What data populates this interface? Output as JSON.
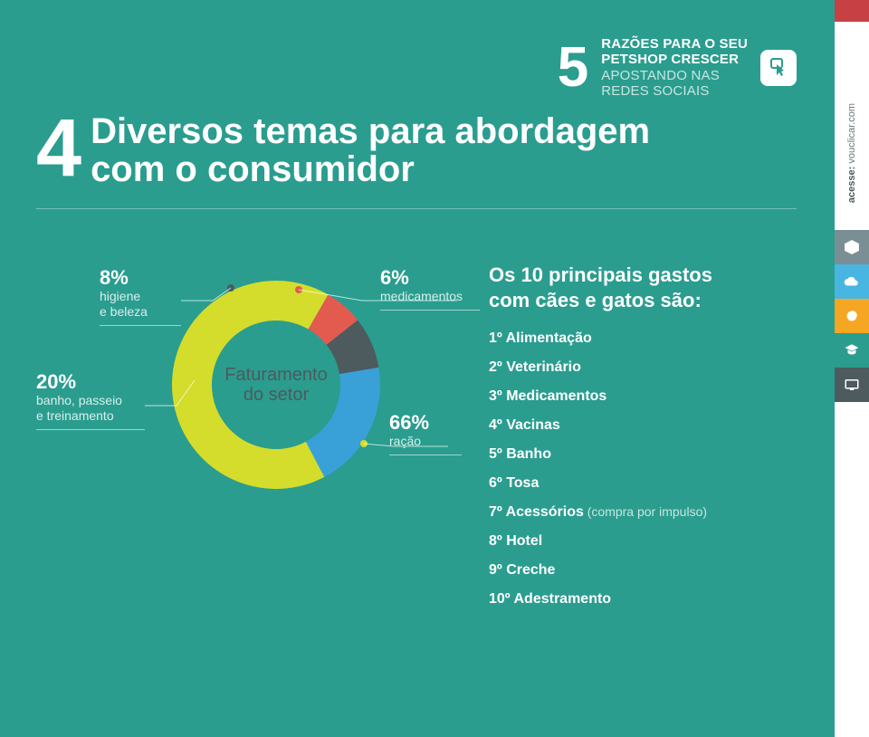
{
  "colors": {
    "page_bg": "#2a9d8f",
    "text_primary": "#ffffff",
    "text_muted": "#d8efeb",
    "text_dark": "#4d5a5e",
    "rule": "rgba(255,255,255,0.35)"
  },
  "header": {
    "numeral": "5",
    "line1": "RAZÕES PARA O SEU",
    "line2": "PETSHOP CRESCER",
    "line3": "APOSTANDO NAS",
    "line4": "REDES SOCIAIS"
  },
  "title": {
    "numeral": "4",
    "line1": "Diversos temas para abordagem",
    "line2": "com o consumidor"
  },
  "donut": {
    "type": "pie",
    "center_label_l1": "Faturamento",
    "center_label_l2": "do setor",
    "ring_thickness": 44,
    "outer_radius": 115,
    "segments": [
      {
        "id": "racao",
        "label_pct": "66%",
        "label_desc": "ração",
        "value": 66,
        "color": "#d4dd2b"
      },
      {
        "id": "banho",
        "label_pct": "20%",
        "label_desc_l1": "banho, passeio",
        "label_desc_l2": "e treinamento",
        "value": 20,
        "color": "#3aa0d8"
      },
      {
        "id": "higiene",
        "label_pct": "8%",
        "label_desc_l1": "higiene",
        "label_desc_l2": "e beleza",
        "value": 8,
        "color": "#4d5a5e"
      },
      {
        "id": "medicamentos",
        "label_pct": "6%",
        "label_desc": "medicamentos",
        "value": 6,
        "color": "#e35a4f"
      }
    ],
    "background_color": "#2a9d8f",
    "label_fontsize": 22,
    "desc_fontsize": 14
  },
  "ranking": {
    "title_l1": "Os 10 principais gastos",
    "title_l2": "com cães e gatos são:",
    "items": [
      {
        "pos": "1º",
        "label": "Alimentação"
      },
      {
        "pos": "2º",
        "label": "Veterinário"
      },
      {
        "pos": "3º",
        "label": "Medicamentos"
      },
      {
        "pos": "4º",
        "label": "Vacinas"
      },
      {
        "pos": "5º",
        "label": "Banho"
      },
      {
        "pos": "6º",
        "label": "Tosa"
      },
      {
        "pos": "7º",
        "label": "Acessórios",
        "note": "(compra por impulso)"
      },
      {
        "pos": "8º",
        "label": "Hotel"
      },
      {
        "pos": "9º",
        "label": "Creche"
      },
      {
        "pos": "10º",
        "label": "Adestramento"
      }
    ]
  },
  "sidebar": {
    "accent_color": "#c74043",
    "vtext_bold": "acesse:",
    "vtext": "vouclicar.com",
    "items": [
      {
        "name": "box-icon",
        "bg": "#7a8f94"
      },
      {
        "name": "cloud-icon",
        "bg": "#48b6e0"
      },
      {
        "name": "ball-icon",
        "bg": "#f5a623"
      },
      {
        "name": "graduation-icon",
        "bg": "#2a9d8f"
      },
      {
        "name": "screen-icon",
        "bg": "#4d5a5e"
      }
    ]
  }
}
